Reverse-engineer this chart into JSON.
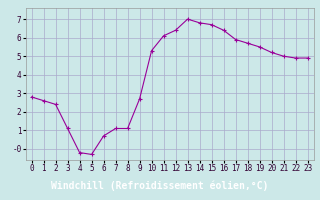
{
  "x": [
    0,
    1,
    2,
    3,
    4,
    5,
    6,
    7,
    8,
    9,
    10,
    11,
    12,
    13,
    14,
    15,
    16,
    17,
    18,
    19,
    20,
    21,
    22,
    23
  ],
  "y": [
    2.8,
    2.6,
    2.4,
    1.1,
    -0.2,
    -0.3,
    0.7,
    1.1,
    1.1,
    2.7,
    5.3,
    6.1,
    6.4,
    7.0,
    6.8,
    6.7,
    6.4,
    5.9,
    5.7,
    5.5,
    5.2,
    5.0,
    4.9,
    4.9
  ],
  "line_color": "#990099",
  "marker": "+",
  "bg_color": "#cce8e8",
  "grid_color": "#aaaacc",
  "xlabel": "Windchill (Refroidissement éolien,°C)",
  "xlabel_color": "#ffffff",
  "xlabel_bg": "#770077",
  "xlim": [
    -0.5,
    23.5
  ],
  "ylim": [
    -0.6,
    7.6
  ],
  "yticks": [
    0,
    1,
    2,
    3,
    4,
    5,
    6,
    7
  ],
  "ytick_labels": [
    "-0",
    "1",
    "2",
    "3",
    "4",
    "5",
    "6",
    "7"
  ],
  "xticks": [
    0,
    1,
    2,
    3,
    4,
    5,
    6,
    7,
    8,
    9,
    10,
    11,
    12,
    13,
    14,
    15,
    16,
    17,
    18,
    19,
    20,
    21,
    22,
    23
  ],
  "tick_fontsize": 5.5,
  "xlabel_fontsize": 7.0,
  "figsize": [
    3.2,
    2.0
  ],
  "dpi": 100
}
